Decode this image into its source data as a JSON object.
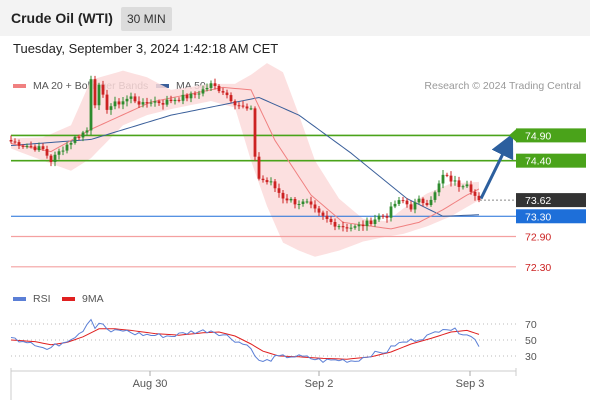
{
  "header": {
    "title": "Crude Oil (WTI)",
    "timeframe": "30 MIN"
  },
  "datetime": "Tuesday, September 3, 2024 1:42:18 AM CET",
  "legend": {
    "items": [
      {
        "label": "MA 20 + Bollinger Bands",
        "color": "#f08080"
      },
      {
        "label": "MA 50",
        "color": "#3a5f9a"
      }
    ],
    "credit": "Research © 2024 Trading Central"
  },
  "rsi_legend": {
    "items": [
      {
        "label": "RSI",
        "color": "#5b7fd6"
      },
      {
        "label": "9MA",
        "color": "#e02020"
      }
    ]
  },
  "colors": {
    "up_candle": "#2e8b2e",
    "down_candle": "#cc2222",
    "resistance": "#4aa31a",
    "support": "#f4a0a0",
    "current": "#333333",
    "pivot": "#1e6fd9",
    "arrow": "#2c5f9e"
  },
  "chart_data": {
    "type": "candlestick",
    "price_range": [
      72.0,
      75.6
    ],
    "current_price": 73.62,
    "pivot": 73.3,
    "resistances": [
      74.9,
      74.4
    ],
    "supports": [
      72.9,
      72.3
    ],
    "level_labels": [
      "74.90",
      "74.40",
      "73.62",
      "73.30",
      "72.90",
      "72.30"
    ],
    "x_ticks": [
      "Aug 30",
      "Sep 2",
      "Sep 3"
    ],
    "rsi_ticks": [
      "70",
      "50",
      "30"
    ],
    "rsi_range": [
      15,
      85
    ],
    "ma20_anchors": [
      [
        0,
        74.74
      ],
      [
        10,
        74.58
      ],
      [
        20,
        75.02
      ],
      [
        35,
        75.56
      ],
      [
        53,
        75.85
      ],
      [
        60,
        75.8
      ],
      [
        66,
        74.8
      ],
      [
        75,
        73.72
      ],
      [
        83,
        73.18
      ],
      [
        95,
        73.05
      ],
      [
        102,
        73.18
      ],
      [
        108,
        73.43
      ],
      [
        114,
        73.72
      ],
      [
        117,
        73.84
      ]
    ],
    "ma50_anchors": [
      [
        0,
        74.7
      ],
      [
        20,
        74.82
      ],
      [
        40,
        75.3
      ],
      [
        62,
        75.65
      ],
      [
        72,
        75.3
      ],
      [
        85,
        74.55
      ],
      [
        99,
        73.65
      ],
      [
        108,
        73.3
      ],
      [
        117,
        73.33
      ]
    ],
    "bb_upper_anchors": [
      [
        0,
        74.84
      ],
      [
        8,
        74.86
      ],
      [
        15,
        75.1
      ],
      [
        20,
        76.0
      ],
      [
        28,
        76.18
      ],
      [
        34,
        76.05
      ],
      [
        40,
        75.8
      ],
      [
        50,
        75.92
      ],
      [
        56,
        75.92
      ],
      [
        60,
        76.1
      ],
      [
        64,
        76.33
      ],
      [
        68,
        76.15
      ],
      [
        72,
        75.3
      ],
      [
        76,
        74.4
      ],
      [
        82,
        73.65
      ],
      [
        88,
        73.25
      ],
      [
        94,
        73.2
      ],
      [
        98,
        73.45
      ],
      [
        104,
        73.75
      ],
      [
        110,
        73.95
      ],
      [
        117,
        73.98
      ]
    ],
    "bb_lower_anchors": [
      [
        0,
        74.64
      ],
      [
        8,
        74.4
      ],
      [
        15,
        74.2
      ],
      [
        20,
        74.45
      ],
      [
        28,
        75.1
      ],
      [
        34,
        75.3
      ],
      [
        40,
        75.42
      ],
      [
        50,
        75.58
      ],
      [
        56,
        75.45
      ],
      [
        60,
        74.4
      ],
      [
        64,
        73.5
      ],
      [
        68,
        72.78
      ],
      [
        72,
        72.62
      ],
      [
        76,
        72.5
      ],
      [
        82,
        72.62
      ],
      [
        88,
        72.8
      ],
      [
        94,
        72.9
      ],
      [
        98,
        72.95
      ],
      [
        104,
        73.1
      ],
      [
        110,
        73.3
      ],
      [
        117,
        73.62
      ]
    ],
    "close_anchors": [
      [
        0,
        74.78
      ],
      [
        4,
        74.7
      ],
      [
        8,
        74.62
      ],
      [
        10,
        74.4
      ],
      [
        13,
        74.65
      ],
      [
        16,
        74.85
      ],
      [
        19,
        75.0
      ],
      [
        20,
        76.05
      ],
      [
        21,
        75.55
      ],
      [
        22,
        75.85
      ],
      [
        24,
        75.45
      ],
      [
        27,
        75.55
      ],
      [
        30,
        75.65
      ],
      [
        33,
        75.5
      ],
      [
        35,
        75.58
      ],
      [
        38,
        75.55
      ],
      [
        41,
        75.62
      ],
      [
        45,
        75.68
      ],
      [
        48,
        75.8
      ],
      [
        50,
        75.9
      ],
      [
        53,
        75.78
      ],
      [
        56,
        75.55
      ],
      [
        58,
        75.45
      ],
      [
        60,
        75.38
      ],
      [
        61,
        74.5
      ],
      [
        62,
        74.05
      ],
      [
        65,
        73.95
      ],
      [
        68,
        73.68
      ],
      [
        71,
        73.58
      ],
      [
        74,
        73.55
      ],
      [
        77,
        73.33
      ],
      [
        80,
        73.18
      ],
      [
        83,
        73.1
      ],
      [
        86,
        73.08
      ],
      [
        89,
        73.16
      ],
      [
        92,
        73.3
      ],
      [
        94,
        73.32
      ],
      [
        96,
        73.55
      ],
      [
        98,
        73.6
      ],
      [
        100,
        73.48
      ],
      [
        102,
        73.6
      ],
      [
        104,
        73.58
      ],
      [
        106,
        73.75
      ],
      [
        108,
        74.1
      ],
      [
        110,
        74.02
      ],
      [
        112,
        73.92
      ],
      [
        114,
        73.98
      ],
      [
        116,
        73.7
      ],
      [
        117,
        73.62
      ]
    ],
    "rsi_anchors": [
      [
        0,
        52
      ],
      [
        5,
        48
      ],
      [
        9,
        38
      ],
      [
        12,
        45
      ],
      [
        16,
        55
      ],
      [
        18,
        63
      ],
      [
        20,
        78
      ],
      [
        21,
        65
      ],
      [
        22,
        72
      ],
      [
        25,
        60
      ],
      [
        28,
        62
      ],
      [
        31,
        58
      ],
      [
        35,
        56
      ],
      [
        40,
        55
      ],
      [
        45,
        60
      ],
      [
        50,
        62
      ],
      [
        54,
        55
      ],
      [
        58,
        45
      ],
      [
        60,
        42
      ],
      [
        61,
        28
      ],
      [
        63,
        22
      ],
      [
        66,
        28
      ],
      [
        70,
        30
      ],
      [
        74,
        28
      ],
      [
        78,
        24
      ],
      [
        82,
        25
      ],
      [
        86,
        24
      ],
      [
        90,
        32
      ],
      [
        94,
        36
      ],
      [
        96,
        44
      ],
      [
        99,
        48
      ],
      [
        102,
        52
      ],
      [
        105,
        56
      ],
      [
        108,
        66
      ],
      [
        111,
        62
      ],
      [
        114,
        58
      ],
      [
        116,
        50
      ],
      [
        117,
        44
      ]
    ],
    "rsi_ma_anchors": [
      [
        0,
        50
      ],
      [
        6,
        48
      ],
      [
        10,
        44
      ],
      [
        14,
        47
      ],
      [
        18,
        54
      ],
      [
        22,
        64
      ],
      [
        26,
        64
      ],
      [
        30,
        62
      ],
      [
        36,
        58
      ],
      [
        42,
        56
      ],
      [
        48,
        59
      ],
      [
        52,
        60
      ],
      [
        56,
        55
      ],
      [
        60,
        45
      ],
      [
        63,
        36
      ],
      [
        67,
        30
      ],
      [
        72,
        29
      ],
      [
        78,
        27
      ],
      [
        84,
        26
      ],
      [
        90,
        29
      ],
      [
        95,
        35
      ],
      [
        100,
        45
      ],
      [
        105,
        52
      ],
      [
        110,
        60
      ],
      [
        114,
        62
      ],
      [
        117,
        57
      ]
    ]
  }
}
